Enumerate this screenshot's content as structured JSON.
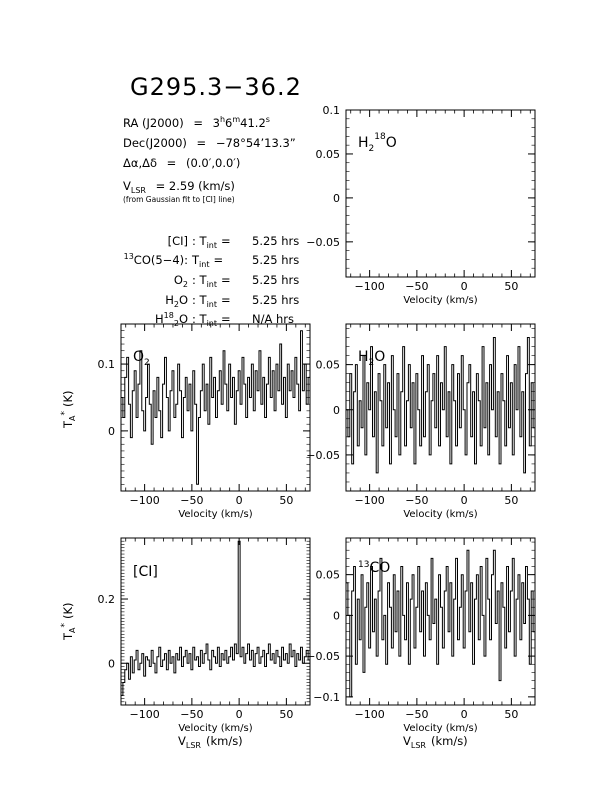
{
  "title": "G295.3−36.2",
  "info": {
    "ra_lhs": "RA (J2000)",
    "ra_eq": "=",
    "ra_h": "3",
    "ra_h_unit": "h",
    "ra_m": "6",
    "ra_m_unit": "m",
    "ra_s": "41.2",
    "ra_s_unit": "s",
    "dec_lhs": "Dec(J2000)",
    "dec_eq": "=",
    "dec_val": "−78°54’13.3”",
    "offset_lhs": "Δα,Δδ",
    "offset_eq": "=",
    "offset_val": "(0.0′,0.0′)",
    "vlsr_v": "V",
    "vlsr_sub": "LSR",
    "vlsr_eq": "= 2.59 (km/s)",
    "vlsr_note": "(from Gaussian fit to [CI] line)",
    "tint_rows": [
      {
        "line_pre": "",
        "line_sup": "",
        "line_main": "[CI]",
        "value": "5.25 hrs"
      },
      {
        "line_pre": "",
        "line_sup": "13",
        "line_main": "CO(5−4):",
        "value": "5.25 hrs"
      },
      {
        "line_pre": "O",
        "line_sup": "",
        "line_main": "2",
        "value": "5.25 hrs"
      },
      {
        "line_pre": "H",
        "line_sup": "",
        "line_main": "2O",
        "value": "5.25 hrs"
      },
      {
        "line_pre": "H",
        "line_sup": "18",
        "line_main": "2O",
        "value": "N/A hrs"
      }
    ],
    "tint_label": "T",
    "tint_sub": "int",
    "tint_eq": "="
  },
  "ylabel_ta": "T",
  "ylabel_sub": "A",
  "ylabel_sup": "*",
  "ylabel_unit": "(K)",
  "xlabel_velocity": "Velocity (km/s)",
  "xlabel_vlsr_v": "V",
  "xlabel_vlsr_sub": "LSR",
  "xlabel_vlsr_unit": "(km/s)",
  "chart_data": [
    {
      "id": "h218o",
      "type": "line",
      "label": "H2 18O",
      "label_parts": {
        "a": "H",
        "b": "2",
        "c": "18",
        "d": "O"
      },
      "xlim": [
        -125,
        75
      ],
      "ylim": [
        -0.09,
        0.1
      ],
      "xticks": [
        -100,
        -50,
        0,
        50
      ],
      "yticks": [
        0.1,
        0.05,
        0,
        -0.05
      ],
      "ytick_labels": [
        "0.1",
        "0.05",
        "0",
        "−0.05"
      ],
      "xtick_labels": [
        "−100",
        "−50",
        "0",
        "50"
      ],
      "x": [],
      "y": []
    },
    {
      "id": "o2",
      "type": "line",
      "label": "O2",
      "label_parts": {
        "a": "O",
        "b": "2"
      },
      "xlim": [
        -125,
        75
      ],
      "ylim": [
        -0.09,
        0.16
      ],
      "xticks": [
        -100,
        -50,
        0,
        50
      ],
      "yticks": [
        0.1,
        0
      ],
      "ytick_labels": [
        "0.1",
        "0"
      ],
      "xtick_labels": [
        "−100",
        "−50",
        "0",
        "50"
      ],
      "x": [
        -124,
        -122,
        -120,
        -118,
        -116,
        -114,
        -112,
        -110,
        -108,
        -106,
        -104,
        -102,
        -100,
        -98,
        -96,
        -94,
        -92,
        -90,
        -88,
        -86,
        -84,
        -82,
        -80,
        -78,
        -76,
        -74,
        -72,
        -70,
        -68,
        -66,
        -64,
        -62,
        -60,
        -58,
        -56,
        -54,
        -52,
        -50,
        -48,
        -46,
        -44,
        -42,
        -40,
        -38,
        -36,
        -34,
        -32,
        -30,
        -28,
        -26,
        -24,
        -22,
        -20,
        -18,
        -16,
        -14,
        -12,
        -10,
        -8,
        -6,
        -4,
        -2,
        0,
        2,
        4,
        6,
        8,
        10,
        12,
        14,
        16,
        18,
        20,
        22,
        24,
        26,
        28,
        30,
        32,
        34,
        36,
        38,
        40,
        42,
        44,
        46,
        48,
        50,
        52,
        54,
        56,
        58,
        60,
        62,
        64,
        66,
        68,
        70,
        72,
        74
      ],
      "y": [
        0.05,
        0.02,
        0.08,
        0.11,
        0.04,
        -0.01,
        0.06,
        0.09,
        0.02,
        0.07,
        0.12,
        0.03,
        0.0,
        0.05,
        0.1,
        0.04,
        -0.02,
        0.06,
        0.02,
        0.08,
        0.03,
        -0.01,
        0.07,
        0.11,
        0.05,
        0.0,
        0.06,
        0.09,
        0.02,
        0.04,
        0.1,
        0.06,
        -0.01,
        0.05,
        0.08,
        0.03,
        0.07,
        0.0,
        0.09,
        0.04,
        -0.08,
        0.02,
        0.06,
        0.1,
        0.03,
        0.07,
        0.01,
        0.11,
        0.05,
        0.08,
        0.02,
        0.06,
        0.09,
        0.04,
        0.12,
        0.07,
        0.03,
        0.1,
        0.05,
        0.08,
        0.01,
        0.06,
        0.09,
        0.04,
        0.11,
        0.07,
        0.02,
        0.08,
        0.05,
        0.1,
        0.03,
        0.09,
        0.06,
        0.12,
        0.04,
        0.08,
        0.02,
        0.07,
        0.11,
        0.05,
        0.09,
        0.03,
        0.1,
        0.06,
        0.13,
        0.04,
        0.08,
        0.02,
        0.1,
        0.06,
        0.09,
        0.05,
        0.11,
        0.07,
        0.03,
        0.15,
        0.06,
        0.1,
        0.04,
        0.08
      ]
    },
    {
      "id": "h2o",
      "type": "line",
      "label": "H2O",
      "label_parts": {
        "a": "H",
        "b": "2",
        "c": "O"
      },
      "xlim": [
        -125,
        75
      ],
      "ylim": [
        -0.09,
        0.095
      ],
      "xticks": [
        -100,
        -50,
        0,
        50
      ],
      "yticks": [
        0.05,
        0,
        -0.05
      ],
      "ytick_labels": [
        "0.05",
        "0",
        "−0.05"
      ],
      "xtick_labels": [
        "−100",
        "−50",
        "0",
        "50"
      ],
      "x": [
        -124,
        -122,
        -120,
        -118,
        -116,
        -114,
        -112,
        -110,
        -108,
        -106,
        -104,
        -102,
        -100,
        -98,
        -96,
        -94,
        -92,
        -90,
        -88,
        -86,
        -84,
        -82,
        -80,
        -78,
        -76,
        -74,
        -72,
        -70,
        -68,
        -66,
        -64,
        -62,
        -60,
        -58,
        -56,
        -54,
        -52,
        -50,
        -48,
        -46,
        -44,
        -42,
        -40,
        -38,
        -36,
        -34,
        -32,
        -30,
        -28,
        -26,
        -24,
        -22,
        -20,
        -18,
        -16,
        -14,
        -12,
        -10,
        -8,
        -6,
        -4,
        -2,
        0,
        2,
        4,
        6,
        8,
        10,
        12,
        14,
        16,
        18,
        20,
        22,
        24,
        26,
        28,
        30,
        32,
        34,
        36,
        38,
        40,
        42,
        44,
        46,
        48,
        50,
        52,
        54,
        56,
        58,
        60,
        62,
        64,
        66,
        68,
        70,
        72,
        74
      ],
      "y": [
        0.0,
        -0.03,
        0.04,
        -0.06,
        0.02,
        0.05,
        -0.04,
        0.01,
        -0.02,
        0.06,
        -0.05,
        0.03,
        0.0,
        0.07,
        -0.03,
        0.02,
        -0.07,
        0.04,
        0.01,
        -0.04,
        0.05,
        -0.02,
        0.03,
        -0.06,
        0.06,
        0.0,
        -0.03,
        0.04,
        -0.05,
        0.02,
        0.07,
        -0.04,
        0.01,
        0.05,
        -0.02,
        0.03,
        -0.06,
        0.04,
        0.0,
        -0.04,
        0.06,
        -0.03,
        0.02,
        0.05,
        -0.05,
        0.01,
        0.04,
        -0.02,
        0.06,
        -0.04,
        0.03,
        0.0,
        0.07,
        -0.03,
        0.02,
        -0.06,
        0.05,
        0.01,
        -0.04,
        0.04,
        -0.02,
        0.06,
        0.0,
        -0.05,
        0.03,
        0.05,
        -0.03,
        0.02,
        -0.06,
        0.04,
        0.01,
        -0.04,
        0.07,
        -0.02,
        0.03,
        -0.05,
        0.05,
        0.0,
        0.08,
        -0.03,
        0.02,
        -0.06,
        0.04,
        0.01,
        -0.04,
        0.06,
        -0.02,
        0.03,
        -0.05,
        0.05,
        0.0,
        0.07,
        -0.03,
        0.02,
        -0.07,
        0.04,
        0.08,
        -0.04,
        0.03,
        -0.02
      ]
    },
    {
      "id": "ci",
      "type": "line",
      "label": "[CI]",
      "label_parts": {
        "a": "[CI]"
      },
      "xlim": [
        -125,
        75
      ],
      "ylim": [
        -0.13,
        0.39
      ],
      "xticks": [
        -100,
        -50,
        0,
        50
      ],
      "yticks": [
        0.2,
        0
      ],
      "ytick_labels": [
        "0.2",
        "0"
      ],
      "xtick_labels": [
        "−100",
        "−50",
        "0",
        "50"
      ],
      "x": [
        -124,
        -122,
        -120,
        -118,
        -116,
        -114,
        -112,
        -110,
        -108,
        -106,
        -104,
        -102,
        -100,
        -98,
        -96,
        -94,
        -92,
        -90,
        -88,
        -86,
        -84,
        -82,
        -80,
        -78,
        -76,
        -74,
        -72,
        -70,
        -68,
        -66,
        -64,
        -62,
        -60,
        -58,
        -56,
        -54,
        -52,
        -50,
        -48,
        -46,
        -44,
        -42,
        -40,
        -38,
        -36,
        -34,
        -32,
        -30,
        -28,
        -26,
        -24,
        -22,
        -20,
        -18,
        -16,
        -14,
        -12,
        -10,
        -8,
        -6,
        -4,
        -2,
        0,
        2,
        4,
        6,
        8,
        10,
        12,
        14,
        16,
        18,
        20,
        22,
        24,
        26,
        28,
        30,
        32,
        34,
        36,
        38,
        40,
        42,
        44,
        46,
        48,
        50,
        52,
        54,
        56,
        58,
        60,
        62,
        64,
        66,
        68,
        70,
        72,
        74
      ],
      "y": [
        -0.1,
        -0.06,
        -0.02,
        0.0,
        -0.05,
        0.02,
        -0.03,
        0.01,
        0.04,
        -0.02,
        0.0,
        0.03,
        -0.04,
        0.02,
        0.01,
        -0.01,
        0.04,
        0.0,
        -0.03,
        0.02,
        0.05,
        -0.01,
        0.01,
        0.03,
        -0.02,
        0.04,
        0.0,
        0.02,
        -0.03,
        0.03,
        0.01,
        0.05,
        -0.01,
        0.02,
        0.04,
        0.0,
        0.03,
        -0.02,
        0.05,
        0.01,
        0.02,
        -0.01,
        0.04,
        0.0,
        0.03,
        0.06,
        0.01,
        -0.02,
        0.04,
        0.02,
        0.0,
        0.05,
        -0.01,
        0.03,
        0.01,
        0.04,
        0.0,
        0.02,
        0.05,
        0.01,
        0.06,
        0.03,
        0.38,
        0.02,
        0.05,
        0.0,
        0.03,
        0.06,
        0.01,
        0.04,
        -0.01,
        0.03,
        0.05,
        0.0,
        0.02,
        0.04,
        -0.01,
        0.03,
        0.06,
        0.01,
        0.03,
        0.0,
        0.04,
        0.02,
        -0.01,
        0.05,
        0.01,
        0.03,
        0.0,
        0.06,
        0.02,
        0.04,
        -0.01,
        0.03,
        0.01,
        0.05,
        0.0,
        0.02,
        0.04,
        0.01
      ]
    },
    {
      "id": "13co",
      "type": "line",
      "label": "13CO",
      "label_parts": {
        "a": "13",
        "b": "CO"
      },
      "xlim": [
        -125,
        75
      ],
      "ylim": [
        -0.11,
        0.095
      ],
      "xticks": [
        -100,
        -50,
        0,
        50
      ],
      "yticks": [
        0.05,
        0,
        -0.05,
        -0.1
      ],
      "ytick_labels": [
        "0.05",
        "0",
        "−0.05",
        "−0.1"
      ],
      "xtick_labels": [
        "−100",
        "−50",
        "0",
        "50"
      ],
      "x": [
        -124,
        -122,
        -120,
        -118,
        -116,
        -114,
        -112,
        -110,
        -108,
        -106,
        -104,
        -102,
        -100,
        -98,
        -96,
        -94,
        -92,
        -90,
        -88,
        -86,
        -84,
        -82,
        -80,
        -78,
        -76,
        -74,
        -72,
        -70,
        -68,
        -66,
        -64,
        -62,
        -60,
        -58,
        -56,
        -54,
        -52,
        -50,
        -48,
        -46,
        -44,
        -42,
        -40,
        -38,
        -36,
        -34,
        -32,
        -30,
        -28,
        -26,
        -24,
        -22,
        -20,
        -18,
        -16,
        -14,
        -12,
        -10,
        -8,
        -6,
        -4,
        -2,
        0,
        2,
        4,
        6,
        8,
        10,
        12,
        14,
        16,
        18,
        20,
        22,
        24,
        26,
        28,
        30,
        32,
        34,
        36,
        38,
        40,
        42,
        44,
        46,
        48,
        50,
        52,
        54,
        56,
        58,
        60,
        62,
        64,
        66,
        68,
        70,
        72,
        74
      ],
      "y": [
        0.04,
        0.0,
        -0.1,
        0.03,
        0.06,
        -0.06,
        0.02,
        -0.03,
        0.05,
        -0.07,
        0.01,
        0.04,
        -0.04,
        0.06,
        -0.02,
        0.02,
        -0.05,
        0.03,
        0.07,
        -0.03,
        0.0,
        -0.06,
        0.04,
        0.01,
        -0.04,
        0.05,
        -0.02,
        0.03,
        -0.05,
        0.06,
        0.0,
        -0.03,
        0.04,
        -0.06,
        0.02,
        0.05,
        -0.04,
        0.01,
        0.06,
        -0.02,
        0.03,
        -0.05,
        0.04,
        0.0,
        -0.03,
        0.07,
        -0.01,
        0.02,
        -0.06,
        0.05,
        0.01,
        -0.04,
        0.03,
        0.06,
        -0.02,
        0.04,
        -0.05,
        0.02,
        0.07,
        -0.03,
        0.01,
        0.05,
        -0.04,
        0.03,
        0.08,
        -0.02,
        0.04,
        -0.06,
        0.02,
        0.05,
        -0.03,
        0.06,
        0.0,
        -0.05,
        0.07,
        0.02,
        -0.03,
        0.05,
        0.08,
        -0.01,
        0.03,
        -0.08,
        0.04,
        0.01,
        -0.04,
        0.06,
        -0.02,
        0.03,
        0.07,
        -0.05,
        0.02,
        0.05,
        -0.03,
        0.04,
        -0.01,
        0.06,
        0.02,
        -0.06,
        0.03,
        -0.02
      ]
    }
  ]
}
